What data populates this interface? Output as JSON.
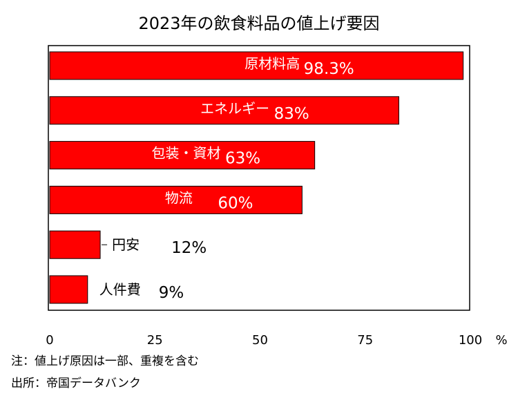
{
  "chart_data": {
    "type": "bar",
    "orientation": "horizontal",
    "title": "2023年の飲食料品の値上げ要因",
    "categories": [
      "原材料高",
      "エネルギー",
      "包装・資材",
      "物流",
      "円安",
      "人件費"
    ],
    "values": [
      98.3,
      83,
      63,
      60,
      12,
      9
    ],
    "value_labels": [
      "98.3%",
      "83%",
      "63%",
      "60%",
      "12%",
      "9%"
    ],
    "xlim": [
      0,
      100
    ],
    "x_ticks": [
      "0",
      "25",
      "50",
      "75",
      "100"
    ],
    "x_unit": "%",
    "grid": false,
    "bar_color": "#ff0000",
    "label_color_inside": "#ffffff",
    "label_color_outside": "#000000"
  },
  "notes": [
    "注：値上げ原因は一部、重複を含む",
    "出所：帝国データバンク"
  ]
}
